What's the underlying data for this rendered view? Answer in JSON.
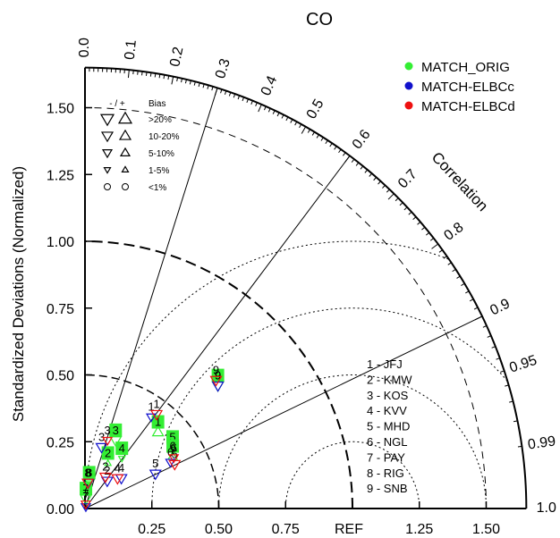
{
  "chart_data": {
    "type": "scatter",
    "title": "CO",
    "ylabel": "Standardized Deviations (Normalized)",
    "corr_label": "Correlation",
    "ref_label": "REF",
    "ylim": [
      0,
      1.65
    ],
    "x_ticks": [
      "0.25",
      "0.50",
      "0.75",
      "1.25",
      "1.50"
    ],
    "y_ticks": [
      "0.00",
      "0.25",
      "0.50",
      "0.75",
      "1.00",
      "1.25",
      "1.50"
    ],
    "corr_ticks": [
      "0.0",
      "0.1",
      "0.2",
      "0.3",
      "0.4",
      "0.5",
      "0.6",
      "0.7",
      "0.8",
      "0.9",
      "0.95",
      "0.99",
      "1.0"
    ],
    "legend": [
      {
        "name": "MATCH_ORIG",
        "color": "#33ee33"
      },
      {
        "name": "MATCH-ELBCc",
        "color": "#1111cc"
      },
      {
        "name": "MATCH-ELBCd",
        "color": "#ee1111"
      }
    ],
    "bias_legend": {
      "header_sign": "- / +",
      "header": "Bias",
      "rows": [
        ">20%",
        "10-20%",
        "5-10%",
        "1-5%",
        "<1%"
      ]
    },
    "stations": [
      "1 - JFJ",
      "2 - KMW",
      "3 - KOS",
      "4 - KVV",
      "5 - MHD",
      "6 - NGL",
      "7 - PAY",
      "8 - RIG",
      "9 - SNB"
    ],
    "series": [
      {
        "name": "MATCH_ORIG",
        "points": [
          {
            "label": "1",
            "corr": 0.65,
            "sd": 0.42,
            "bias": "+10-20%"
          },
          {
            "label": "2",
            "corr": 0.39,
            "sd": 0.22,
            "bias": "+1-5%"
          },
          {
            "label": "3",
            "corr": 0.37,
            "sd": 0.31,
            "bias": "-10-20%"
          },
          {
            "label": "4",
            "corr": 0.53,
            "sd": 0.26,
            "bias": "-1-5%"
          },
          {
            "label": "5",
            "corr": 0.78,
            "sd": 0.42,
            "bias": "<1%"
          },
          {
            "label": "6",
            "corr": 0.82,
            "sd": 0.4,
            "bias": "+5-10%"
          },
          {
            "label": "7",
            "corr": 0.05,
            "sd": 0.07,
            "bias": "-10-20%"
          },
          {
            "label": "8",
            "corr": 0.12,
            "sd": 0.13,
            "bias": "-1-5%"
          },
          {
            "label": "9",
            "corr": 0.71,
            "sd": 0.7,
            "bias": "-10-20%"
          }
        ]
      },
      {
        "name": "MATCH-ELBCc",
        "points": [
          {
            "label": "1",
            "corr": 0.55,
            "sd": 0.45,
            "bias": "-5-10%"
          },
          {
            "label": "2",
            "corr": 0.52,
            "sd": 0.16,
            "bias": "-10-20%"
          },
          {
            "label": "3",
            "corr": 0.23,
            "sd": 0.27,
            "bias": "-10-20%"
          },
          {
            "label": "4",
            "corr": 0.68,
            "sd": 0.2,
            "bias": "-10-20%"
          },
          {
            "label": "5",
            "corr": 0.85,
            "sd": 0.31,
            "bias": "-10-20%"
          },
          {
            "label": "6",
            "corr": 0.84,
            "sd": 0.38,
            "bias": "-5-10%"
          },
          {
            "label": "7",
            "corr": 0.08,
            "sd": 0.04,
            "bias": "-5-10%"
          },
          {
            "label": "8",
            "corr": 0.09,
            "sd": 0.13,
            "bias": "-10-20%"
          },
          {
            "label": "9",
            "corr": 0.71,
            "sd": 0.7,
            "bias": "-10-20%"
          }
        ]
      },
      {
        "name": "MATCH-ELBCd",
        "points": [
          {
            "label": "1",
            "corr": 0.57,
            "sd": 0.47,
            "bias": "-10-20%"
          },
          {
            "label": "2",
            "corr": 0.45,
            "sd": 0.17,
            "bias": "-10-20%"
          },
          {
            "label": "3",
            "corr": 0.28,
            "sd": 0.3,
            "bias": "-5-10%"
          },
          {
            "label": "4",
            "corr": 0.64,
            "sd": 0.19,
            "bias": "-10-20%"
          },
          {
            "label": "5",
            "corr": 0.86,
            "sd": 0.39,
            "bias": "-10-20%"
          },
          {
            "label": "6",
            "corr": 0.83,
            "sd": 0.4,
            "bias": "-5-10%"
          },
          {
            "label": "7",
            "corr": 0.06,
            "sd": 0.05,
            "bias": "-5-10%"
          },
          {
            "label": "8",
            "corr": 0.08,
            "sd": 0.13,
            "bias": "-10-20%"
          },
          {
            "label": "9",
            "corr": 0.69,
            "sd": 0.71,
            "bias": "-10-20%"
          }
        ]
      }
    ]
  }
}
